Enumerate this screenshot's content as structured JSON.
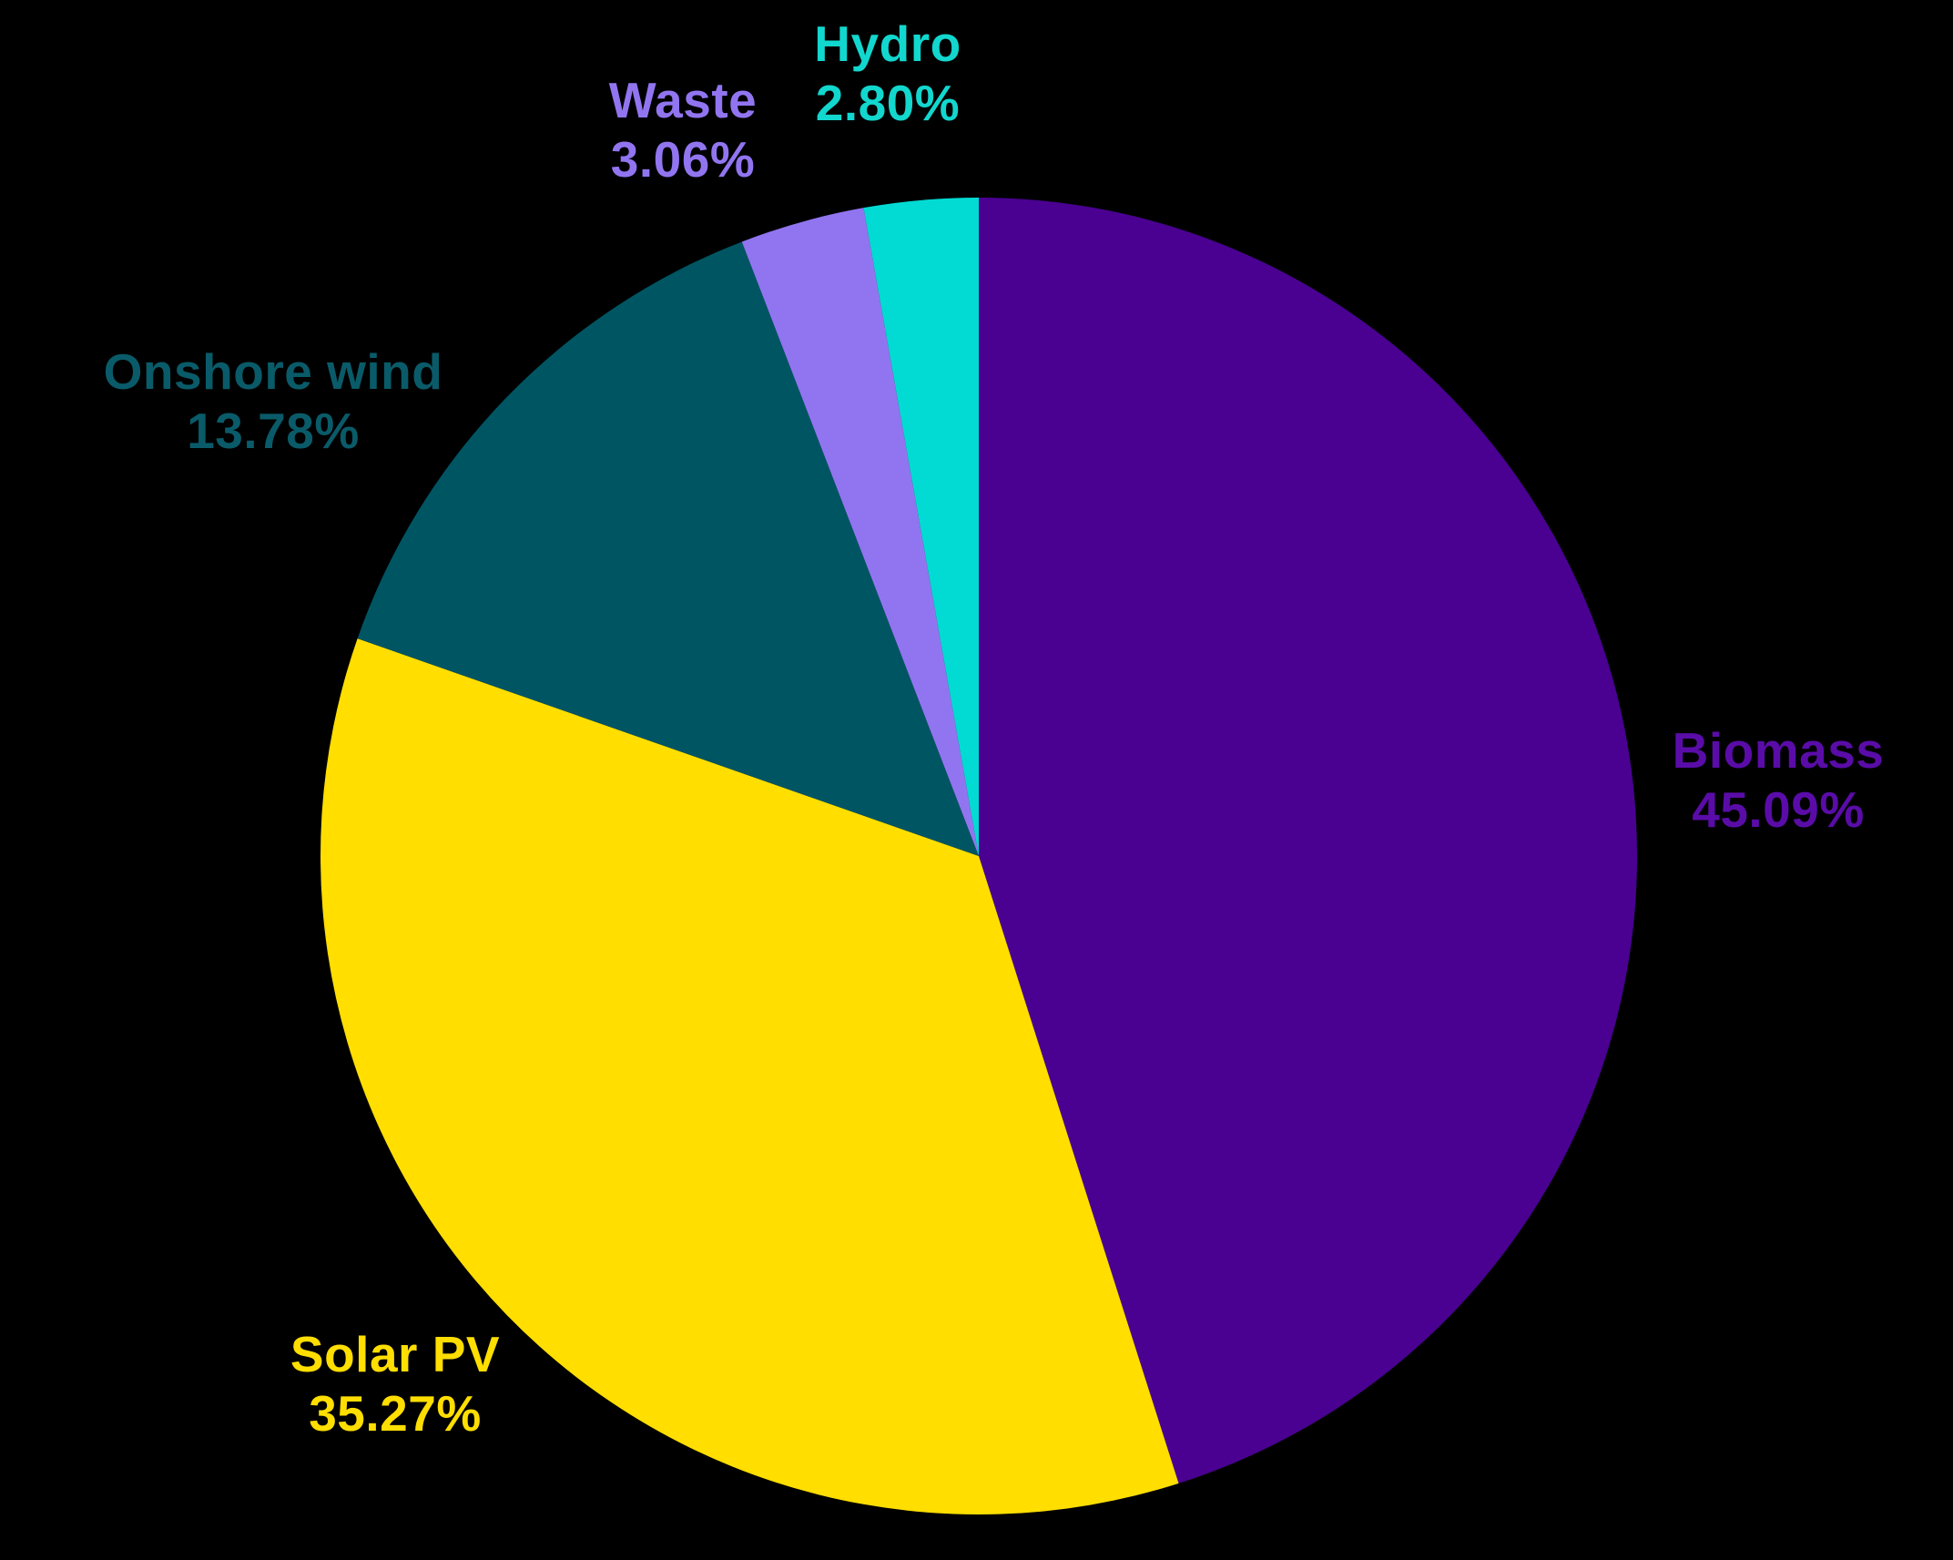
{
  "background_color": "#000000",
  "chart_data": {
    "type": "pie",
    "title": "",
    "units": "%",
    "start_angle_deg": 0,
    "direction": "clockwise",
    "legend_position": "none",
    "labels_outside": true,
    "categories": [
      "Biomass",
      "Solar PV",
      "Onshore wind",
      "Waste",
      "Hydro"
    ],
    "values": [
      45.09,
      35.27,
      13.78,
      3.06,
      2.8
    ],
    "slices": [
      {
        "label": "Biomass",
        "value": 45.09,
        "display": "45.09%",
        "color": "#4A0191",
        "label_color": "#5A0CA8"
      },
      {
        "label": "Solar PV",
        "value": 35.27,
        "display": "35.27%",
        "color": "#FFDE00",
        "label_color": "#FFDE00"
      },
      {
        "label": "Onshore wind",
        "value": 13.78,
        "display": "13.78%",
        "color": "#005563",
        "label_color": "#0A5B69"
      },
      {
        "label": "Waste",
        "value": 3.06,
        "display": "3.06%",
        "color": "#9175F0",
        "label_color": "#9175F0"
      },
      {
        "label": "Hydro",
        "value": 2.8,
        "display": "2.80%",
        "color": "#02DBD3",
        "label_color": "#12D7CE"
      }
    ]
  }
}
